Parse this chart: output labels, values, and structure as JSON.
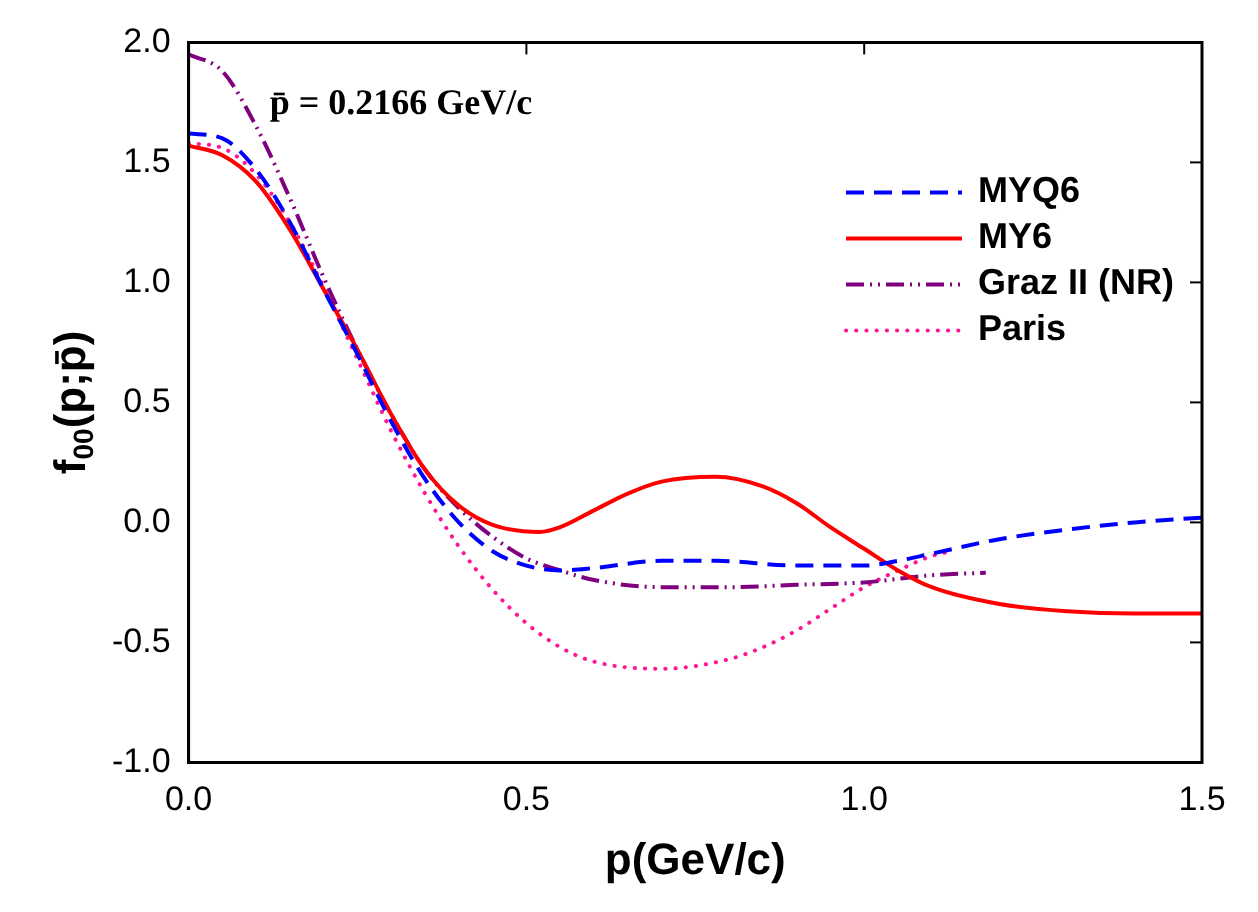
{
  "chart_data": {
    "type": "line",
    "xlabel": "p(GeV/c)",
    "ylabel": "f$_{00}$(p;p̄)",
    "annotations": [
      "p̄ = 0.2166 GeV/c"
    ],
    "legend": "top right",
    "grid": false,
    "marker": "none",
    "xlim": [
      0,
      1.5
    ],
    "xticks": [
      {
        "value": 0,
        "label": "0.0"
      },
      {
        "value": 0.5,
        "label": "0.5"
      },
      {
        "value": 1,
        "label": "1.0"
      },
      {
        "value": 1.5,
        "label": "1.5"
      }
    ],
    "ylim": [
      -1,
      2
    ],
    "yticks": [
      {
        "value": -1,
        "label": "-1.0"
      },
      {
        "value": -0.5,
        "label": "-0.5"
      },
      {
        "value": 0,
        "label": "0.0"
      },
      {
        "value": 0.5,
        "label": "0.5"
      },
      {
        "value": 1,
        "label": "1.0"
      },
      {
        "value": 1.5,
        "label": "1.5"
      },
      {
        "value": 2,
        "label": "2.0"
      }
    ],
    "series": [
      {
        "name": "MYQ6",
        "color": "#0000ff",
        "line_style": "dashed",
        "x": [
          0,
          0.05,
          0.1,
          0.15,
          0.2,
          0.25,
          0.3,
          0.35,
          0.4,
          0.45,
          0.5,
          0.55,
          0.6,
          0.7,
          0.78,
          0.9,
          1.0,
          1.05,
          1.1,
          1.2,
          1.3,
          1.4,
          1.5
        ],
        "values": [
          1.62,
          1.6,
          1.47,
          1.25,
          0.97,
          0.7,
          0.42,
          0.18,
          0.0,
          -0.12,
          -0.18,
          -0.2,
          -0.19,
          -0.16,
          -0.16,
          -0.18,
          -0.18,
          -0.16,
          -0.13,
          -0.07,
          -0.03,
          0.0,
          0.02
        ]
      },
      {
        "name": "MY6",
        "color": "#ff0000",
        "line_style": "solid",
        "x": [
          0,
          0.05,
          0.1,
          0.15,
          0.2,
          0.25,
          0.3,
          0.35,
          0.4,
          0.45,
          0.52,
          0.55,
          0.6,
          0.65,
          0.7,
          0.78,
          0.85,
          0.9,
          0.95,
          1.0,
          1.05,
          1.1,
          1.2,
          1.3,
          1.4,
          1.5
        ],
        "values": [
          1.57,
          1.53,
          1.42,
          1.22,
          0.97,
          0.72,
          0.45,
          0.22,
          0.07,
          -0.01,
          -0.04,
          -0.02,
          0.05,
          0.12,
          0.17,
          0.19,
          0.15,
          0.08,
          -0.02,
          -0.11,
          -0.2,
          -0.27,
          -0.34,
          -0.37,
          -0.38,
          -0.38
        ]
      },
      {
        "name": "Graz II (NR)",
        "color": "#800080",
        "line_style": "dashdot",
        "x": [
          0,
          0.05,
          0.1,
          0.15,
          0.2,
          0.25,
          0.3,
          0.35,
          0.4,
          0.45,
          0.5,
          0.55,
          0.6,
          0.7,
          0.8,
          0.9,
          1.0,
          1.1,
          1.18
        ],
        "values": [
          1.95,
          1.88,
          1.65,
          1.35,
          1.02,
          0.72,
          0.45,
          0.22,
          0.06,
          -0.06,
          -0.15,
          -0.2,
          -0.24,
          -0.27,
          -0.27,
          -0.26,
          -0.25,
          -0.22,
          -0.21
        ]
      },
      {
        "name": "Paris",
        "color": "#ff1493",
        "line_style": "dotted",
        "x": [
          0,
          0.05,
          0.1,
          0.15,
          0.2,
          0.25,
          0.3,
          0.35,
          0.4,
          0.45,
          0.5,
          0.55,
          0.6,
          0.7,
          0.8,
          0.85,
          0.9,
          0.95,
          1.0,
          1.05,
          1.1,
          1.13
        ],
        "values": [
          1.58,
          1.56,
          1.45,
          1.25,
          0.98,
          0.68,
          0.38,
          0.12,
          -0.1,
          -0.28,
          -0.42,
          -0.52,
          -0.58,
          -0.61,
          -0.57,
          -0.52,
          -0.45,
          -0.36,
          -0.27,
          -0.2,
          -0.14,
          -0.12
        ]
      }
    ]
  }
}
